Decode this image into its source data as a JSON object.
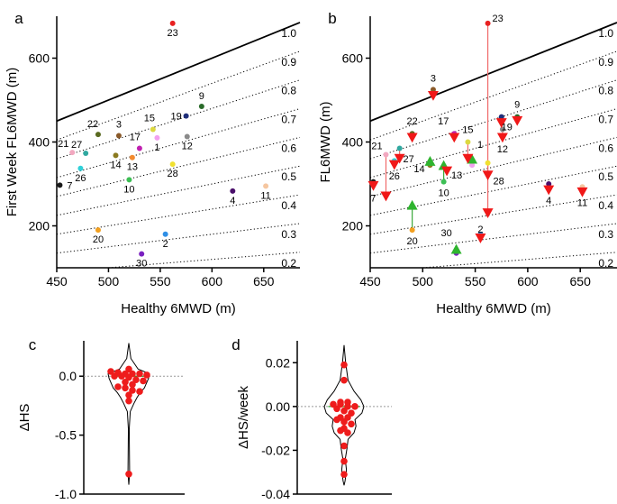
{
  "chart_data": [
    {
      "id": "a",
      "type": "scatter",
      "panel_label": "a",
      "xlabel": "Healthy 6MWD (m)",
      "ylabel": "First Week FL6MWD (m)",
      "xlim": [
        450,
        685
      ],
      "ylim": [
        100,
        700
      ],
      "xticks": [
        450,
        500,
        550,
        600,
        650
      ],
      "yticks": [
        200,
        400,
        600
      ],
      "reference_lines": [
        {
          "label": "1.0",
          "ratio": 1.0,
          "style": "solid"
        },
        {
          "label": "0.9",
          "ratio": 0.9,
          "style": "dotted"
        },
        {
          "label": "0.8",
          "ratio": 0.8,
          "style": "dotted"
        },
        {
          "label": "0.7",
          "ratio": 0.7,
          "style": "dotted"
        },
        {
          "label": "0.6",
          "ratio": 0.6,
          "style": "dotted"
        },
        {
          "label": "0.5",
          "ratio": 0.5,
          "style": "dotted"
        },
        {
          "label": "0.4",
          "ratio": 0.4,
          "style": "dotted"
        },
        {
          "label": "0.3",
          "ratio": 0.3,
          "style": "dotted"
        },
        {
          "label": "0.2",
          "ratio": 0.2,
          "style": "dotted"
        }
      ],
      "points": [
        {
          "label": "1",
          "x": 547,
          "y": 410,
          "color": "#f2a0f0"
        },
        {
          "label": "2",
          "x": 555,
          "y": 180,
          "color": "#2f8fe6"
        },
        {
          "label": "3",
          "x": 510,
          "y": 415,
          "color": "#8a5a2a"
        },
        {
          "label": "4",
          "x": 620,
          "y": 283,
          "color": "#4a0f6a"
        },
        {
          "label": "7",
          "x": 453,
          "y": 297,
          "color": "#1a1a1a"
        },
        {
          "label": "9",
          "x": 590,
          "y": 485,
          "color": "#2a6b2a"
        },
        {
          "label": "10",
          "x": 520,
          "y": 310,
          "color": "#3dbf55"
        },
        {
          "label": "11",
          "x": 652,
          "y": 295,
          "color": "#f5c6a0"
        },
        {
          "label": "12",
          "x": 576,
          "y": 413,
          "color": "#8a8a8a"
        },
        {
          "label": "13",
          "x": 523,
          "y": 363,
          "color": "#f28a30"
        },
        {
          "label": "14",
          "x": 507,
          "y": 368,
          "color": "#8a7a20"
        },
        {
          "label": "15",
          "x": 543,
          "y": 430,
          "color": "#dcd840"
        },
        {
          "label": "17",
          "x": 530,
          "y": 385,
          "color": "#c020b0"
        },
        {
          "label": "19",
          "x": 575,
          "y": 462,
          "color": "#1f2f7a"
        },
        {
          "label": "20",
          "x": 490,
          "y": 190,
          "color": "#f2a020"
        },
        {
          "label": "21",
          "x": 465,
          "y": 375,
          "color": "#f2a8c0"
        },
        {
          "label": "22",
          "x": 490,
          "y": 418,
          "color": "#5a6a20"
        },
        {
          "label": "23",
          "x": 562,
          "y": 683,
          "color": "#e82020"
        },
        {
          "label": "26",
          "x": 473,
          "y": 337,
          "color": "#30d0d8"
        },
        {
          "label": "27",
          "x": 478,
          "y": 373,
          "color": "#30a8a0"
        },
        {
          "label": "28",
          "x": 562,
          "y": 347,
          "color": "#f0e030"
        },
        {
          "label": "30",
          "x": 532,
          "y": 133,
          "color": "#7a20c0"
        }
      ]
    },
    {
      "id": "b",
      "type": "scatter",
      "panel_label": "b",
      "xlabel": "Healthy 6MWD (m)",
      "ylabel": "FL6MWD (m)",
      "xlim": [
        450,
        685
      ],
      "ylim": [
        100,
        700
      ],
      "xticks": [
        450,
        500,
        550,
        600,
        650
      ],
      "yticks": [
        200,
        400,
        600
      ],
      "reference_lines": [
        {
          "label": "1.0",
          "ratio": 1.0,
          "style": "solid"
        },
        {
          "label": "0.9",
          "ratio": 0.9,
          "style": "dotted"
        },
        {
          "label": "0.8",
          "ratio": 0.8,
          "style": "dotted"
        },
        {
          "label": "0.7",
          "ratio": 0.7,
          "style": "dotted"
        },
        {
          "label": "0.6",
          "ratio": 0.6,
          "style": "dotted"
        },
        {
          "label": "0.5",
          "ratio": 0.5,
          "style": "dotted"
        },
        {
          "label": "0.4",
          "ratio": 0.4,
          "style": "dotted"
        },
        {
          "label": "0.3",
          "ratio": 0.3,
          "style": "dotted"
        },
        {
          "label": "0.2",
          "ratio": 0.2,
          "style": "dotted"
        }
      ],
      "legend_markers": {
        "increase": "green up-triangle",
        "decrease": "red down-triangle"
      },
      "subjects": [
        {
          "label": "1",
          "x": 547,
          "first": 345,
          "last": 360,
          "color": "#f2a0f0"
        },
        {
          "label": "2",
          "x": 555,
          "first": 180,
          "last": 170,
          "color": "#2f8fe6"
        },
        {
          "label": "3",
          "x": 510,
          "first": 525,
          "last": 510,
          "color": "#8a5a2a"
        },
        {
          "label": "4",
          "x": 620,
          "first": 300,
          "last": 285,
          "color": "#4a0f6a"
        },
        {
          "label": "7",
          "x": 453,
          "first": 305,
          "last": 295,
          "color": "#1a1a1a"
        },
        {
          "label": "9",
          "x": 590,
          "first": 460,
          "last": 450,
          "color": "#2a6b2a"
        },
        {
          "label": "10",
          "x": 520,
          "first": 305,
          "last": 345,
          "color": "#3dbf55"
        },
        {
          "label": "11",
          "x": 652,
          "first": 293,
          "last": 280,
          "color": "#f5c6a0"
        },
        {
          "label": "12",
          "x": 576,
          "first": 430,
          "last": 410,
          "color": "#8a8a8a"
        },
        {
          "label": "13",
          "x": 523,
          "first": 335,
          "last": 330,
          "color": "#f28a30"
        },
        {
          "label": "14",
          "x": 507,
          "first": 345,
          "last": 355,
          "color": "#8a7a20"
        },
        {
          "label": "15",
          "x": 543,
          "first": 400,
          "last": 360,
          "color": "#dcd840"
        },
        {
          "label": "17",
          "x": 530,
          "first": 420,
          "last": 410,
          "color": "#c020b0"
        },
        {
          "label": "19",
          "x": 575,
          "first": 460,
          "last": 445,
          "color": "#1f2f7a"
        },
        {
          "label": "20",
          "x": 490,
          "first": 190,
          "last": 250,
          "color": "#f2a020"
        },
        {
          "label": "21",
          "x": 465,
          "first": 370,
          "last": 270,
          "color": "#f2a8c0"
        },
        {
          "label": "22",
          "x": 490,
          "first": 420,
          "last": 410,
          "color": "#5a6a20"
        },
        {
          "label": "23",
          "x": 562,
          "first": 683,
          "last": 230,
          "color": "#e82020"
        },
        {
          "label": "26",
          "x": 473,
          "first": 355,
          "last": 345,
          "color": "#30d0d8"
        },
        {
          "label": "27",
          "x": 478,
          "first": 385,
          "last": 360,
          "color": "#30a8a0"
        },
        {
          "label": "28",
          "x": 562,
          "first": 350,
          "last": 320,
          "color": "#f0e030"
        },
        {
          "label": "30",
          "x": 532,
          "first": 135,
          "last": 145,
          "color": "#7a20c0"
        }
      ]
    },
    {
      "id": "c",
      "type": "violin",
      "panel_label": "c",
      "ylabel": "ΔHS",
      "ylim": [
        -1.0,
        0.3
      ],
      "yticks": [
        -1.0,
        -0.5,
        0.0
      ],
      "ytick_labels": [
        "-1.0",
        "-0.5",
        "0.0"
      ],
      "zero_line": 0.0,
      "density_profile": [
        {
          "y": 0.28,
          "w": 0.0
        },
        {
          "y": 0.15,
          "w": 0.1
        },
        {
          "y": 0.06,
          "w": 0.45
        },
        {
          "y": 0.02,
          "w": 1.0
        },
        {
          "y": -0.02,
          "w": 0.95
        },
        {
          "y": -0.06,
          "w": 0.85
        },
        {
          "y": -0.1,
          "w": 0.75
        },
        {
          "y": -0.14,
          "w": 0.55
        },
        {
          "y": -0.18,
          "w": 0.4
        },
        {
          "y": -0.23,
          "w": 0.25
        },
        {
          "y": -0.3,
          "w": 0.07
        },
        {
          "y": -0.45,
          "w": 0.02
        },
        {
          "y": -0.82,
          "w": 0.04
        },
        {
          "y": -0.92,
          "w": 0.0
        }
      ],
      "points": [
        0.06,
        0.04,
        0.03,
        0.02,
        0.02,
        0.02,
        0.01,
        0.0,
        0.0,
        -0.01,
        -0.03,
        -0.04,
        -0.05,
        -0.07,
        -0.09,
        -0.1,
        -0.12,
        -0.13,
        -0.16,
        -0.21,
        -0.83
      ]
    },
    {
      "id": "d",
      "type": "violin",
      "panel_label": "d",
      "ylabel": "ΔHS/week",
      "ylim": [
        -0.04,
        0.03
      ],
      "yticks": [
        -0.04,
        -0.02,
        0.0,
        0.02
      ],
      "ytick_labels": [
        "-0.04",
        "-0.02",
        "0.00",
        "0.02"
      ],
      "zero_line": 0.0,
      "density_profile": [
        {
          "y": 0.028,
          "w": 0.0
        },
        {
          "y": 0.02,
          "w": 0.08
        },
        {
          "y": 0.012,
          "w": 0.2
        },
        {
          "y": 0.007,
          "w": 0.5
        },
        {
          "y": 0.003,
          "w": 0.85
        },
        {
          "y": 0.0,
          "w": 1.0
        },
        {
          "y": -0.003,
          "w": 0.9
        },
        {
          "y": -0.006,
          "w": 0.55
        },
        {
          "y": -0.009,
          "w": 0.6
        },
        {
          "y": -0.012,
          "w": 0.5
        },
        {
          "y": -0.015,
          "w": 0.2
        },
        {
          "y": -0.019,
          "w": 0.15
        },
        {
          "y": -0.024,
          "w": 0.06
        },
        {
          "y": -0.029,
          "w": 0.12
        },
        {
          "y": -0.034,
          "w": 0.05
        },
        {
          "y": -0.036,
          "w": 0.0
        }
      ],
      "points": [
        0.019,
        0.012,
        0.002,
        0.002,
        0.001,
        0.001,
        0.0,
        0.0,
        -0.001,
        -0.002,
        -0.003,
        -0.005,
        -0.005,
        -0.006,
        -0.007,
        -0.008,
        -0.01,
        -0.011,
        -0.012,
        -0.018,
        -0.025,
        -0.031
      ]
    }
  ]
}
